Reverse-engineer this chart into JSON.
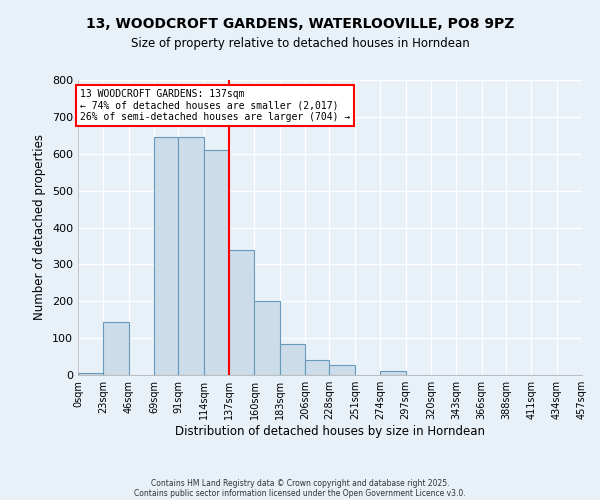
{
  "title": "13, WOODCROFT GARDENS, WATERLOOVILLE, PO8 9PZ",
  "subtitle": "Size of property relative to detached houses in Horndean",
  "xlabel": "Distribution of detached houses by size in Horndean",
  "ylabel": "Number of detached properties",
  "bin_edges": [
    0,
    23,
    46,
    69,
    91,
    114,
    137,
    160,
    183,
    206,
    228,
    251,
    274,
    297,
    320,
    343,
    366,
    388,
    411,
    434,
    457
  ],
  "bin_labels": [
    "0sqm",
    "23sqm",
    "46sqm",
    "69sqm",
    "91sqm",
    "114sqm",
    "137sqm",
    "160sqm",
    "183sqm",
    "206sqm",
    "228sqm",
    "251sqm",
    "274sqm",
    "297sqm",
    "320sqm",
    "343sqm",
    "366sqm",
    "388sqm",
    "411sqm",
    "434sqm",
    "457sqm"
  ],
  "counts": [
    5,
    145,
    0,
    645,
    645,
    610,
    340,
    200,
    83,
    42,
    27,
    0,
    12,
    0,
    0,
    0,
    0,
    0,
    0,
    0
  ],
  "bar_facecolor": "#ccdce8",
  "bar_edgecolor": "#6699bb",
  "vline_x": 137,
  "vline_color": "red",
  "ylim": [
    0,
    800
  ],
  "yticks": [
    0,
    100,
    200,
    300,
    400,
    500,
    600,
    700,
    800
  ],
  "annotation_title": "13 WOODCROFT GARDENS: 137sqm",
  "annotation_line1": "← 74% of detached houses are smaller (2,017)",
  "annotation_line2": "26% of semi-detached houses are larger (704) →",
  "annotation_box_edgecolor": "red",
  "footer1": "Contains HM Land Registry data © Crown copyright and database right 2025.",
  "footer2": "Contains public sector information licensed under the Open Government Licence v3.0.",
  "background_color": "#e8f0f8",
  "grid_color": "white"
}
